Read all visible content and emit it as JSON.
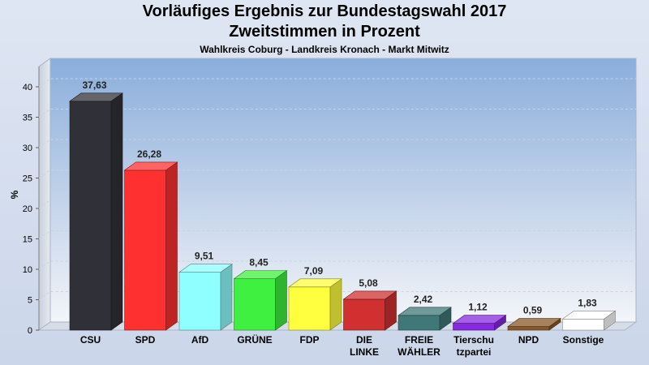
{
  "chart_data": {
    "type": "bar",
    "title": "Vorläufiges Ergebnis zur Bundestagswahl 2017",
    "subtitle": "Zweitstimmen in Prozent",
    "subsubtitle": "Wahlkreis Coburg - Landkreis Kronach - Markt Mitwitz",
    "ylabel": "%",
    "ylim": [
      0,
      40
    ],
    "yticks": [
      0,
      5,
      10,
      15,
      20,
      25,
      30,
      35,
      40
    ],
    "grid": true,
    "categories": [
      [
        "CSU"
      ],
      [
        "SPD"
      ],
      [
        "AfD"
      ],
      [
        "GRÜNE"
      ],
      [
        "FDP"
      ],
      [
        "DIE",
        "LINKE"
      ],
      [
        "FREIE",
        "WÄHLER"
      ],
      [
        "Tierschu",
        "tzpartei"
      ],
      [
        "NPD"
      ],
      [
        "Sonstige"
      ]
    ],
    "values": [
      37.63,
      26.28,
      9.51,
      8.45,
      7.09,
      5.08,
      2.42,
      1.12,
      0.59,
      1.83
    ],
    "value_labels": [
      "37,63",
      "26,28",
      "9,51",
      "8,45",
      "7,09",
      "5,08",
      "2,42",
      "1,12",
      "0,59",
      "1,83"
    ],
    "colors": [
      "#303038",
      "#ff3030",
      "#90ffff",
      "#40f040",
      "#ffff40",
      "#d03030",
      "#407878",
      "#8828e0",
      "#8a5828",
      "#ffffff"
    ]
  }
}
